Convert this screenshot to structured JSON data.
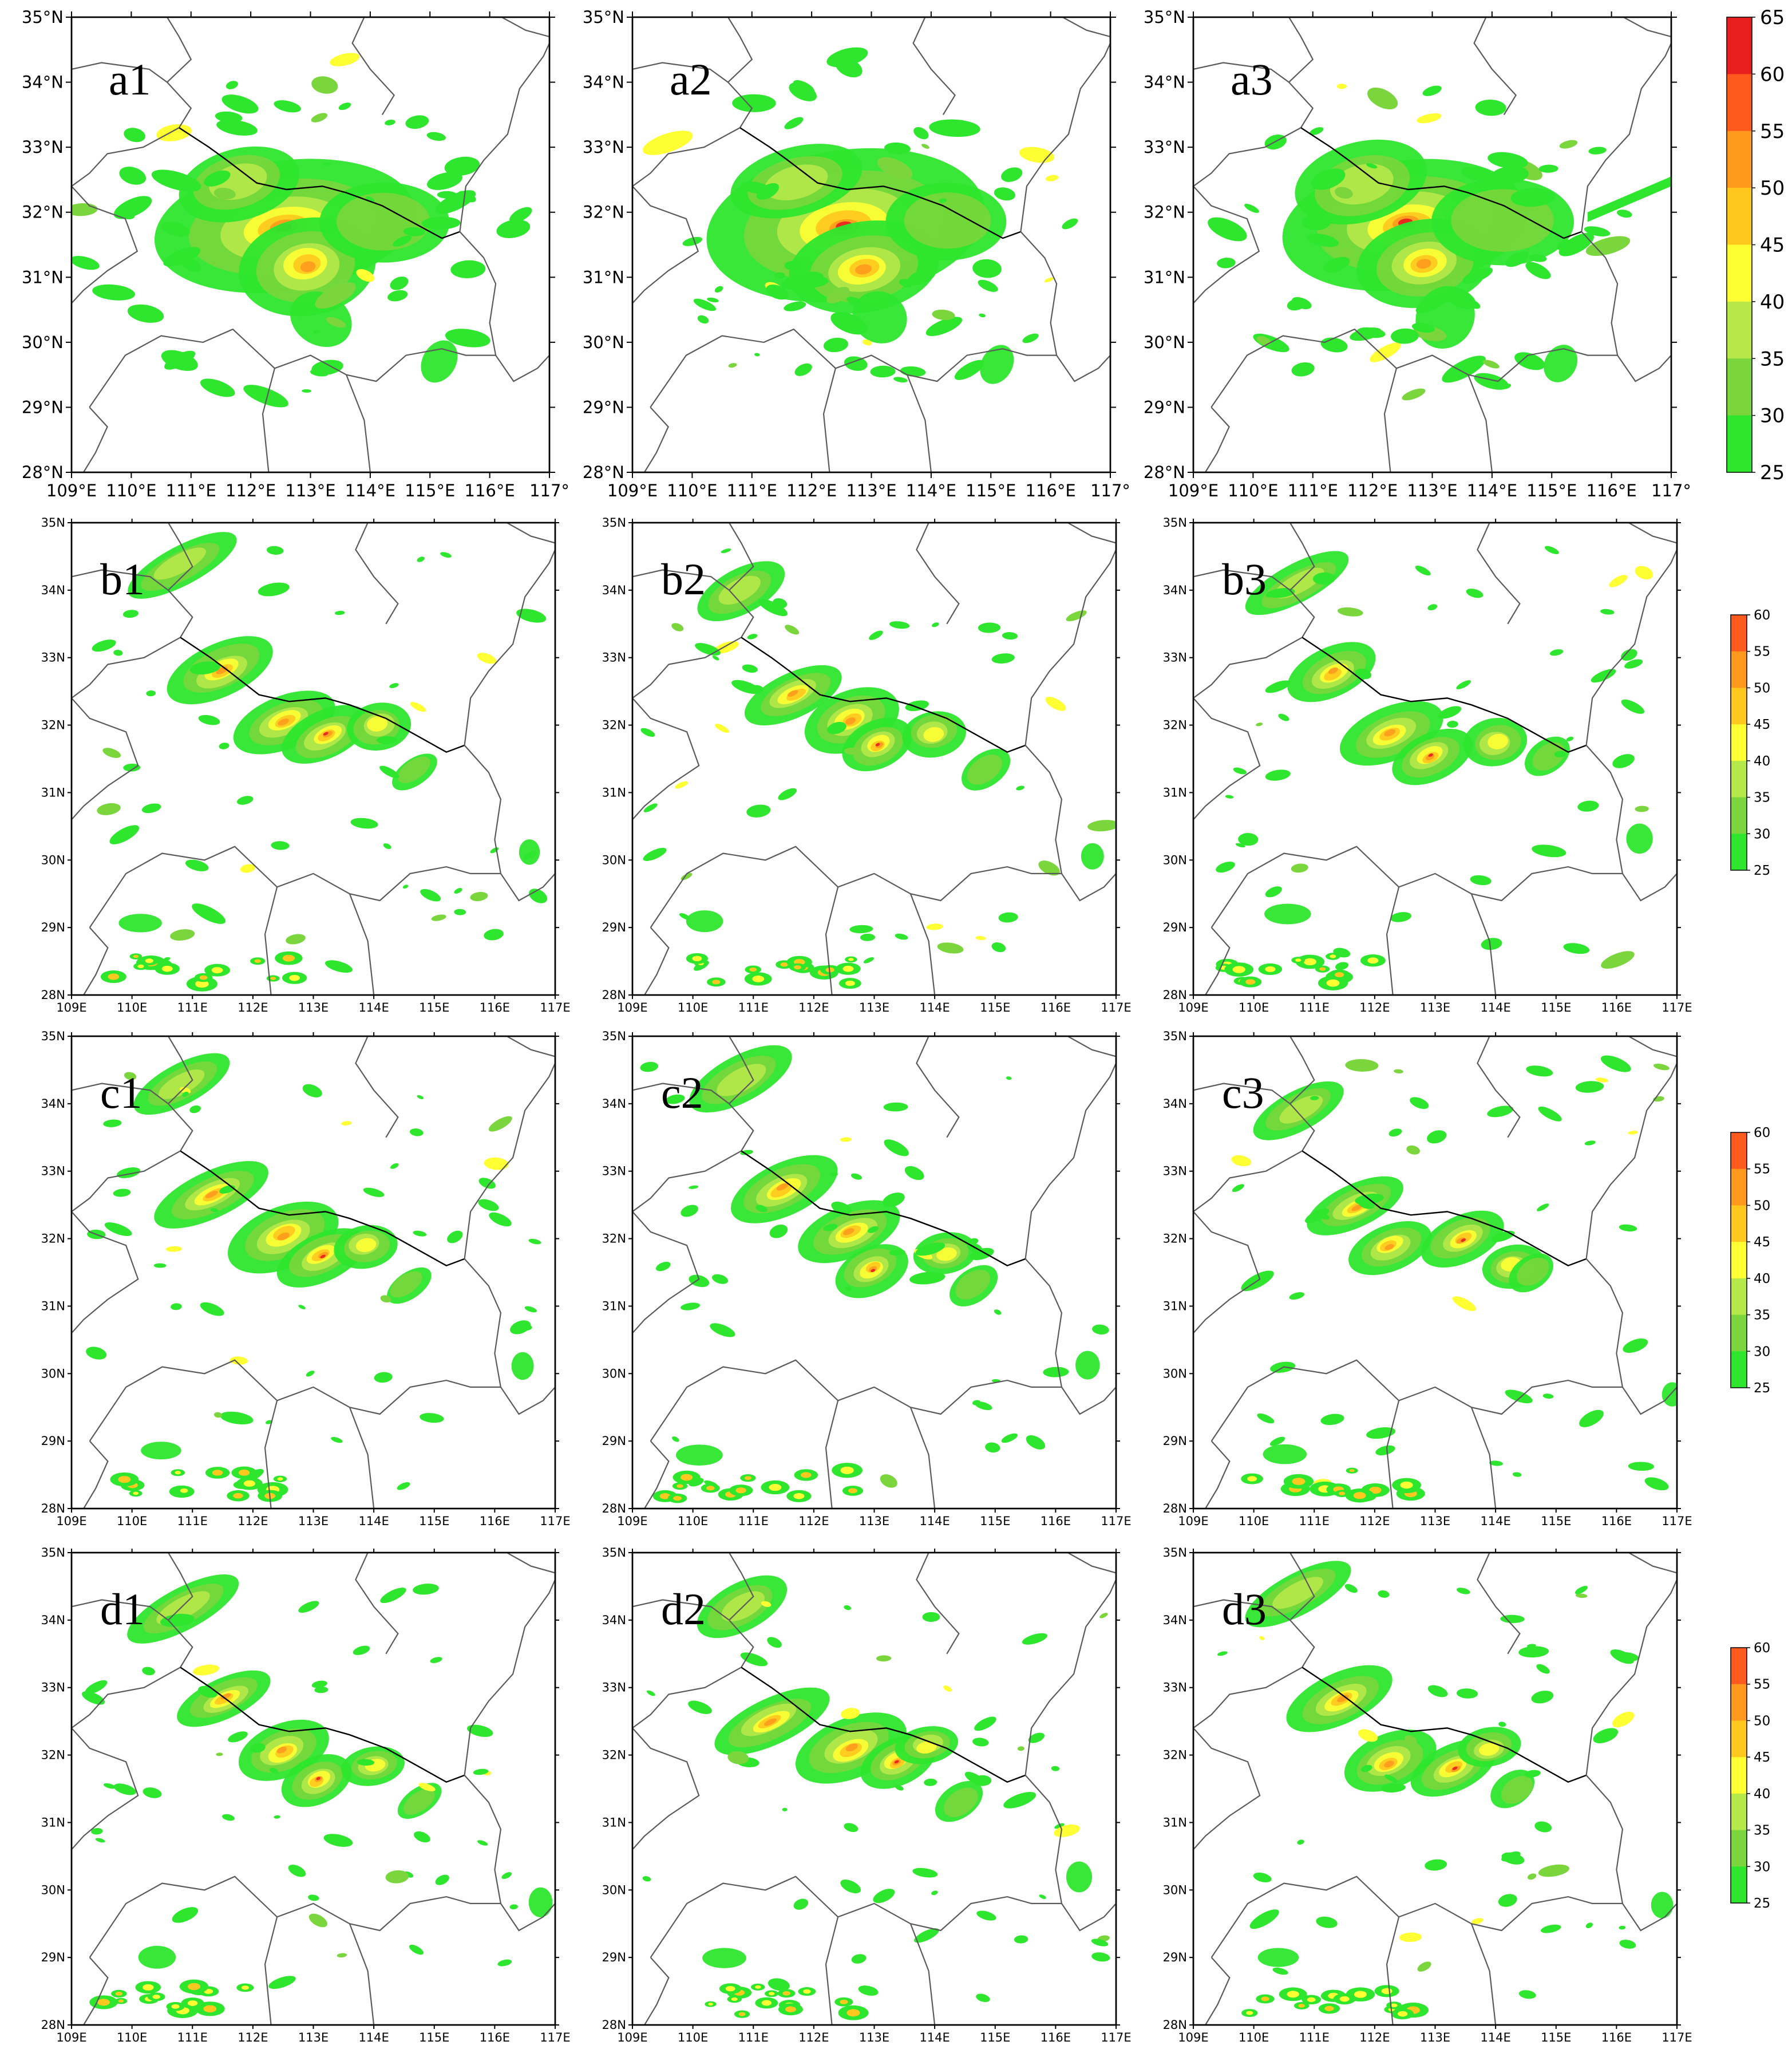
{
  "figure": {
    "rows": [
      {
        "style": "a",
        "panels": [
          {
            "label": "a1",
            "seed": 11
          },
          {
            "label": "a2",
            "seed": 23
          },
          {
            "label": "a3",
            "seed": 37
          }
        ],
        "colorbar": {
          "labels": [
            "65",
            "60",
            "55",
            "50",
            "45",
            "40",
            "35",
            "30",
            "25"
          ]
        },
        "x_ticks": [
          "109°E",
          "110°E",
          "111°E",
          "112°E",
          "113°E",
          "114°E",
          "115°E",
          "116°E",
          "117°"
        ],
        "y_ticks": [
          "35°N",
          "34°N",
          "33°N",
          "32°N",
          "31°N",
          "30°N",
          "29°N",
          "28°N"
        ]
      },
      {
        "style": "b",
        "panels": [
          {
            "label": "b1",
            "seed": 41
          },
          {
            "label": "b2",
            "seed": 53
          },
          {
            "label": "b3",
            "seed": 67
          }
        ],
        "colorbar": {
          "labels": [
            "60",
            "55",
            "50",
            "45",
            "40",
            "35",
            "30",
            "25"
          ]
        },
        "x_ticks": [
          "109E",
          "110E",
          "111E",
          "112E",
          "113E",
          "114E",
          "115E",
          "116E",
          "117E"
        ],
        "y_ticks": [
          "35N",
          "34N",
          "33N",
          "32N",
          "31N",
          "30N",
          "29N",
          "28N"
        ]
      },
      {
        "style": "b",
        "panels": [
          {
            "label": "c1",
            "seed": 71
          },
          {
            "label": "c2",
            "seed": 83
          },
          {
            "label": "c3",
            "seed": 97
          }
        ],
        "colorbar": {
          "labels": [
            "60",
            "55",
            "50",
            "45",
            "40",
            "35",
            "30",
            "25"
          ]
        },
        "x_ticks": [
          "109E",
          "110E",
          "111E",
          "112E",
          "113E",
          "114E",
          "115E",
          "116E",
          "117E"
        ],
        "y_ticks": [
          "35N",
          "34N",
          "33N",
          "32N",
          "31N",
          "30N",
          "29N",
          "28N"
        ]
      },
      {
        "style": "b",
        "panels": [
          {
            "label": "d1",
            "seed": 101
          },
          {
            "label": "d2",
            "seed": 113
          },
          {
            "label": "d3",
            "seed": 127
          }
        ],
        "colorbar": {
          "labels": [
            "60",
            "55",
            "50",
            "45",
            "40",
            "35",
            "30",
            "25"
          ]
        },
        "x_ticks": [
          "109E",
          "110E",
          "111E",
          "112E",
          "113E",
          "114E",
          "115E",
          "116E",
          "117E"
        ],
        "y_ticks": [
          "35N",
          "34N",
          "33N",
          "32N",
          "31N",
          "30N",
          "29N",
          "28N"
        ]
      }
    ],
    "palette": [
      "#2ee62e",
      "#7ad63c",
      "#b6e84a",
      "#ffff33",
      "#ffc81e",
      "#ff9a1e",
      "#ff5a1e",
      "#e61e1e",
      "#ff1e96"
    ],
    "lon_range": [
      109,
      117
    ],
    "lat_range": [
      28,
      35
    ]
  }
}
